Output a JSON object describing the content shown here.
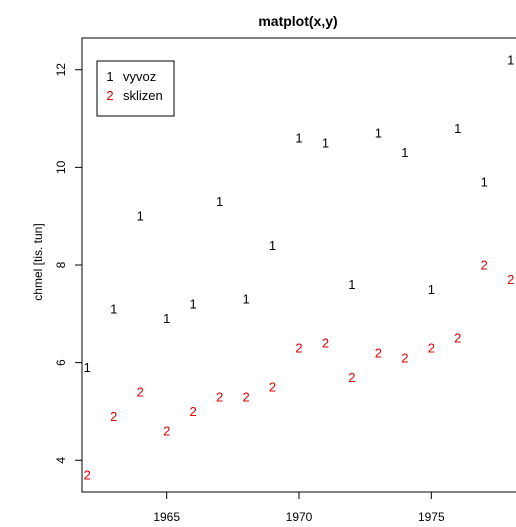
{
  "chart_data": {
    "type": "scatter",
    "title": "matplot(x,y)",
    "xlabel": "",
    "ylabel": "chmel [tis. tun]",
    "x": [
      1962,
      1963,
      1964,
      1965,
      1966,
      1967,
      1968,
      1969,
      1970,
      1971,
      1972,
      1973,
      1974,
      1975,
      1976,
      1977,
      1978
    ],
    "xlim": [
      1961.8,
      1978.2
    ],
    "ylim": [
      3.35,
      12.65
    ],
    "x_ticks": [
      1965,
      1970,
      1975
    ],
    "y_ticks": [
      4,
      6,
      8,
      10,
      12
    ],
    "grid": false,
    "legend": "top-left",
    "series": [
      {
        "name": "vyvoz",
        "symbol": "1",
        "color": "#000000",
        "values": [
          5.9,
          7.1,
          9.0,
          6.9,
          7.2,
          9.3,
          7.3,
          8.4,
          10.6,
          10.5,
          7.6,
          10.7,
          10.3,
          7.5,
          10.8,
          9.7,
          12.2
        ]
      },
      {
        "name": "sklizen",
        "symbol": "2",
        "color": "#df0000",
        "values": [
          3.7,
          4.9,
          5.4,
          4.6,
          5.0,
          5.3,
          5.3,
          5.5,
          6.3,
          6.4,
          5.7,
          6.2,
          6.1,
          6.3,
          6.5,
          8.0,
          7.7
        ]
      }
    ]
  }
}
